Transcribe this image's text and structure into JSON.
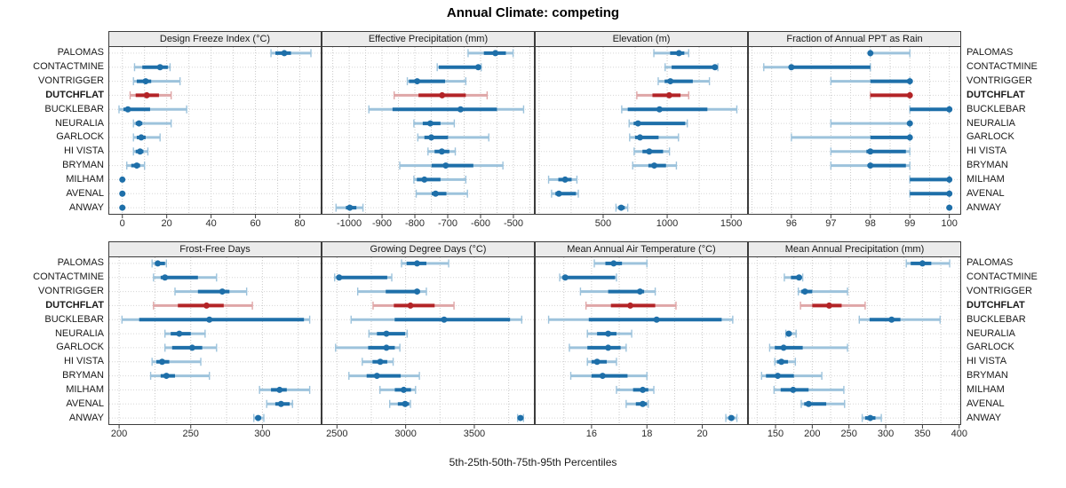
{
  "title": "Annual Climate: competing",
  "footer": "5th-25th-50th-75th-95th Percentiles",
  "percentile_labels": [
    "5th",
    "25th",
    "50th",
    "75th",
    "95th"
  ],
  "sites": [
    "PALOMAS",
    "CONTACTMINE",
    "VONTRIGGER",
    "DUTCHFLAT",
    "BUCKLEBAR",
    "NEURALIA",
    "GARLOCK",
    "HI VISTA",
    "BRYMAN",
    "MILHAM",
    "AVENAL",
    "ANWAY"
  ],
  "highlight_site": "DUTCHFLAT",
  "colors": {
    "blue": "#1e6fa9",
    "blue_light": "#9dc3dc",
    "red": "#b32427",
    "red_light": "#dfa6a7",
    "panel_border": "#3c3c3c",
    "strip_bg": "#ebebeb",
    "grid_minor": "#c9c9c9",
    "row_guide": "#d6d6d6"
  },
  "chart_data": [
    {
      "type": "percentile-interval-dotplot",
      "title": "Design Freeze Index (°C)",
      "xlim": [
        -6.3,
        89.8
      ],
      "ticks": [
        0,
        20,
        40,
        60,
        80
      ],
      "minor_step": 10,
      "values": [
        [
          67,
          69,
          73,
          76,
          85
        ],
        [
          5.5,
          9,
          17,
          20.5,
          21.5
        ],
        [
          5,
          6.5,
          10.5,
          13,
          26
        ],
        [
          3.5,
          6,
          11,
          16.5,
          22
        ],
        [
          -1.5,
          0.5,
          2.5,
          12.5,
          29
        ],
        [
          5,
          6,
          7.5,
          9,
          22
        ],
        [
          5,
          6.5,
          8.5,
          10.5,
          17
        ],
        [
          5,
          6,
          8,
          9.5,
          11.5
        ],
        [
          2,
          4,
          6.5,
          8,
          10
        ],
        [
          0,
          0,
          0,
          0,
          0
        ],
        [
          0,
          0,
          0,
          0,
          0
        ],
        [
          0,
          0,
          0,
          0,
          0
        ]
      ]
    },
    {
      "type": "percentile-interval-dotplot",
      "title": "Effective Precipitation (mm)",
      "xlim": [
        -1084,
        -435
      ],
      "ticks": [
        -1000,
        -900,
        -800,
        -700,
        -600,
        -500
      ],
      "minor_step": 50,
      "values": [
        [
          -638,
          -590,
          -555,
          -523,
          -501
        ],
        [
          -732,
          -727,
          -607,
          -604,
          -598
        ],
        [
          -823,
          -818,
          -793,
          -708,
          -645
        ],
        [
          -863,
          -789,
          -717,
          -645,
          -580
        ],
        [
          -940,
          -868,
          -661,
          -550,
          -469
        ],
        [
          -803,
          -776,
          -753,
          -722,
          -680
        ],
        [
          -791,
          -771,
          -750,
          -699,
          -575
        ],
        [
          -760,
          -740,
          -718,
          -695,
          -677
        ],
        [
          -846,
          -749,
          -706,
          -622,
          -532
        ],
        [
          -803,
          -794,
          -771,
          -722,
          -645
        ],
        [
          -796,
          -749,
          -737,
          -704,
          -640
        ],
        [
          -1040,
          -1010,
          -998,
          -978,
          -958
        ]
      ]
    },
    {
      "type": "percentile-interval-dotplot",
      "title": "Elevation (m)",
      "xlim": [
        -34,
        1631
      ],
      "ticks": [
        500,
        1000,
        1500
      ],
      "minor_step": 250,
      "values": [
        [
          896,
          1023,
          1092,
          1134,
          1168
        ],
        [
          984,
          1035,
          1373,
          1385,
          1396
        ],
        [
          930,
          980,
          1025,
          1200,
          1330
        ],
        [
          763,
          885,
          1016,
          1104,
          1168
        ],
        [
          645,
          692,
          940,
          1314,
          1544
        ],
        [
          703,
          738,
          772,
          1141,
          1157
        ],
        [
          707,
          749,
          788,
          933,
          1088
        ],
        [
          742,
          807,
          860,
          968,
          1018
        ],
        [
          731,
          853,
          899,
          991,
          1072
        ],
        [
          74,
          150,
          203,
          254,
          295
        ],
        [
          97,
          127,
          154,
          288,
          306
        ],
        [
          600,
          618,
          641,
          669,
          692
        ]
      ]
    },
    {
      "type": "percentile-interval-dotplot",
      "title": "Fraction of Annual PPT as Rain",
      "xlim": [
        94.9,
        100.3
      ],
      "ticks": [
        96,
        97,
        98,
        99,
        100
      ],
      "minor_step": 0.5,
      "values": [
        [
          98,
          98,
          98,
          98,
          99
        ],
        [
          95.3,
          96,
          96,
          98,
          98
        ],
        [
          97,
          98,
          99,
          99,
          99
        ],
        [
          98,
          98,
          99,
          99,
          99
        ],
        [
          99,
          99,
          100,
          100,
          100
        ],
        [
          97,
          99,
          99,
          99,
          99
        ],
        [
          96,
          98,
          99,
          99,
          99
        ],
        [
          97,
          97.9,
          98,
          98.9,
          99
        ],
        [
          97,
          98,
          98,
          98.9,
          99
        ],
        [
          99,
          99,
          100,
          100,
          100
        ],
        [
          99,
          99,
          100,
          100,
          100
        ],
        [
          100,
          100,
          100,
          100,
          100
        ]
      ]
    },
    {
      "type": "percentile-interval-dotplot",
      "title": "Frost-Free Days",
      "xlim": [
        192.5,
        341.3
      ],
      "ticks": [
        200,
        250,
        300
      ],
      "minor_step": 25,
      "values": [
        [
          223,
          225,
          227,
          232,
          233
        ],
        [
          224,
          229,
          232,
          255,
          268
        ],
        [
          239,
          255,
          272,
          277,
          289
        ],
        [
          224,
          241,
          261,
          273,
          293
        ],
        [
          202,
          214,
          263,
          329,
          333
        ],
        [
          232,
          236,
          242,
          250,
          260
        ],
        [
          232,
          237,
          251,
          258,
          268
        ],
        [
          223,
          226,
          230,
          235,
          257
        ],
        [
          222,
          229,
          233,
          239,
          263
        ],
        [
          298,
          306,
          312,
          317,
          333
        ],
        [
          303,
          309,
          313,
          319,
          321
        ],
        [
          294,
          296,
          297,
          299,
          301
        ]
      ]
    },
    {
      "type": "percentile-interval-dotplot",
      "title": "Growing Degree Days (°C)",
      "xlim": [
        2388,
        3940
      ],
      "ticks": [
        2500,
        3000,
        3500
      ],
      "minor_step": 250,
      "values": [
        [
          2970,
          3007,
          3083,
          3151,
          3313
        ],
        [
          2483,
          2500,
          2516,
          2866,
          2899
        ],
        [
          2651,
          2855,
          3083,
          3103,
          3151
        ],
        [
          2763,
          2914,
          3035,
          3211,
          3352
        ],
        [
          2603,
          2920,
          3280,
          3760,
          3845
        ],
        [
          2733,
          2791,
          2860,
          2996,
          3011
        ],
        [
          2490,
          2727,
          2860,
          2921,
          2958
        ],
        [
          2684,
          2759,
          2815,
          2866,
          2909
        ],
        [
          2587,
          2716,
          2791,
          2964,
          3100
        ],
        [
          2813,
          2921,
          2986,
          3039,
          3072
        ],
        [
          2884,
          2943,
          2996,
          3025,
          3035
        ],
        [
          3815,
          3826,
          3836,
          3848,
          3858
        ]
      ]
    },
    {
      "type": "percentile-interval-dotplot",
      "title": "Mean Annual Air Temperature (°C)",
      "xlim": [
        13.95,
        21.65
      ],
      "ticks": [
        16,
        18,
        20
      ],
      "minor_step": 1,
      "values": [
        [
          16.1,
          16.5,
          16.8,
          17.1,
          18.0
        ],
        [
          14.85,
          14.95,
          15.05,
          16.85,
          16.9
        ],
        [
          15.6,
          16.6,
          17.75,
          17.9,
          18.3
        ],
        [
          15.8,
          16.7,
          17.4,
          18.3,
          19.05
        ],
        [
          14.45,
          15.9,
          18.35,
          20.7,
          21.1
        ],
        [
          15.85,
          16.2,
          16.6,
          16.9,
          17.45
        ],
        [
          15.2,
          15.85,
          16.6,
          17.05,
          17.25
        ],
        [
          15.85,
          16.0,
          16.2,
          16.55,
          16.9
        ],
        [
          15.25,
          16.0,
          16.4,
          17.3,
          18.0
        ],
        [
          16.9,
          17.5,
          17.85,
          18.05,
          18.25
        ],
        [
          17.25,
          17.6,
          17.85,
          18.0,
          18.05
        ],
        [
          20.85,
          20.95,
          21.05,
          21.15,
          21.25
        ]
      ]
    },
    {
      "type": "percentile-interval-dotplot",
      "title": "Mean Annual Precipitation (mm)",
      "xlim": [
        112.5,
        402.7
      ],
      "ticks": [
        150,
        200,
        250,
        300,
        350,
        400
      ],
      "minor_step": 25,
      "values": [
        [
          328,
          334,
          350,
          362,
          387
        ],
        [
          162,
          171,
          182,
          185,
          187
        ],
        [
          181,
          185,
          190,
          200,
          248
        ],
        [
          184,
          200,
          223,
          240,
          272
        ],
        [
          264,
          278,
          308,
          320,
          374
        ],
        [
          164,
          165,
          168,
          172,
          178
        ],
        [
          142,
          149,
          161,
          187,
          248
        ],
        [
          149,
          152,
          158,
          167,
          177
        ],
        [
          131,
          137,
          153,
          175,
          213
        ],
        [
          148,
          157,
          174,
          195,
          243
        ],
        [
          185,
          189,
          195,
          219,
          244
        ],
        [
          268,
          272,
          279,
          286,
          294
        ]
      ]
    }
  ]
}
